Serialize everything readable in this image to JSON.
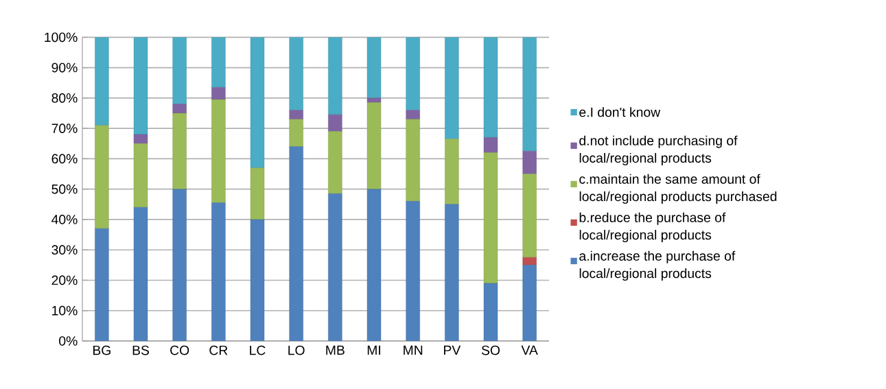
{
  "chart_data": {
    "type": "bar",
    "stacked": true,
    "categories": [
      "BG",
      "BS",
      "CO",
      "CR",
      "LC",
      "LO",
      "MB",
      "MI",
      "MN",
      "PV",
      "SO",
      "VA"
    ],
    "series": [
      {
        "name": "a.increase the purchase of local/regional products",
        "color": "#4f81bd",
        "values": [
          37,
          44,
          50,
          45.5,
          40,
          64,
          48.5,
          50,
          46,
          45,
          19,
          25
        ]
      },
      {
        "name": "b.reduce the purchase of local/regional products",
        "color": "#c0504d",
        "values": [
          0,
          0,
          0,
          0,
          0,
          0,
          0,
          0,
          0,
          0,
          0,
          2.5
        ]
      },
      {
        "name": "c.maintain the same amount of local/regional products purchased",
        "color": "#9bbb59",
        "values": [
          34,
          21,
          25,
          34,
          17,
          9,
          20.5,
          28.5,
          27,
          21.5,
          43,
          27.5
        ]
      },
      {
        "name": "d.not include purchasing of local/regional products",
        "color": "#8064a2",
        "values": [
          0,
          3,
          3,
          4,
          0,
          3,
          5.5,
          1.5,
          3,
          0,
          5,
          7.5
        ]
      },
      {
        "name": "e.I don't know",
        "color": "#4bacc6",
        "values": [
          29,
          32,
          22,
          16.5,
          43,
          24,
          25.5,
          20,
          24,
          33.5,
          33,
          37.5
        ]
      }
    ],
    "ylim": [
      0,
      100
    ],
    "yticks": [
      {
        "value": 0,
        "label": "0%"
      },
      {
        "value": 10,
        "label": "10%"
      },
      {
        "value": 20,
        "label": "20%"
      },
      {
        "value": 30,
        "label": "30%"
      },
      {
        "value": 40,
        "label": "40%"
      },
      {
        "value": 50,
        "label": "50%"
      },
      {
        "value": 60,
        "label": "60%"
      },
      {
        "value": 70,
        "label": "70%"
      },
      {
        "value": 80,
        "label": "80%"
      },
      {
        "value": 90,
        "label": "90%"
      },
      {
        "value": 100,
        "label": "100%"
      }
    ],
    "grid": "y",
    "legend": "right"
  }
}
